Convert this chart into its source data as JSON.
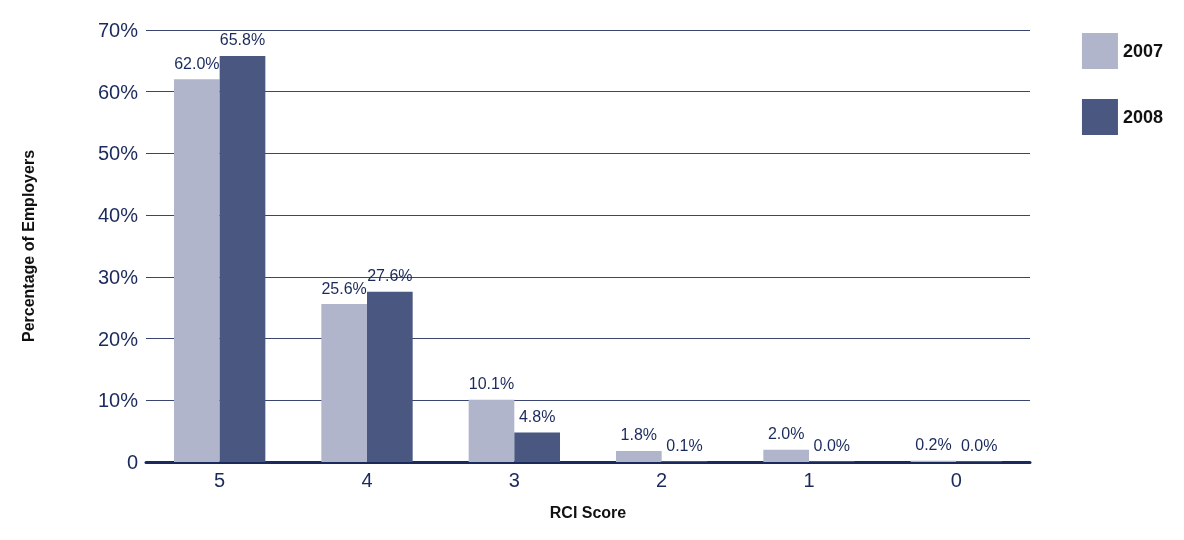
{
  "chart_data": {
    "type": "bar",
    "xlabel": "RCI Score",
    "ylabel": "Percentage of Employers",
    "categories": [
      "5",
      "4",
      "3",
      "2",
      "1",
      "0"
    ],
    "series": [
      {
        "name": "2007",
        "color": "#b1b5cc",
        "values": [
          62.0,
          25.6,
          10.1,
          1.8,
          2.0,
          0.2
        ],
        "value_labels": [
          "62.0%",
          "25.6%",
          "10.1%",
          "1.8%",
          "2.0%",
          "0.2%"
        ]
      },
      {
        "name": "2008",
        "color": "#4a5780",
        "values": [
          65.8,
          27.6,
          4.8,
          0.1,
          0.0,
          0.0
        ],
        "value_labels": [
          "65.8%",
          "27.6%",
          "4.8%",
          "0.1%",
          "0.0%",
          "0.0%"
        ]
      }
    ],
    "ylim": [
      0,
      70
    ],
    "yticks": [
      {
        "value": 0,
        "label": "0"
      },
      {
        "value": 10,
        "label": "10%"
      },
      {
        "value": 20,
        "label": "20%"
      },
      {
        "value": 30,
        "label": "30%"
      },
      {
        "value": 40,
        "label": "40%"
      },
      {
        "value": 50,
        "label": "50%"
      },
      {
        "value": 60,
        "label": "60%"
      },
      {
        "value": 70,
        "label": "70%"
      }
    ],
    "grid": "y",
    "legend": "top right"
  }
}
